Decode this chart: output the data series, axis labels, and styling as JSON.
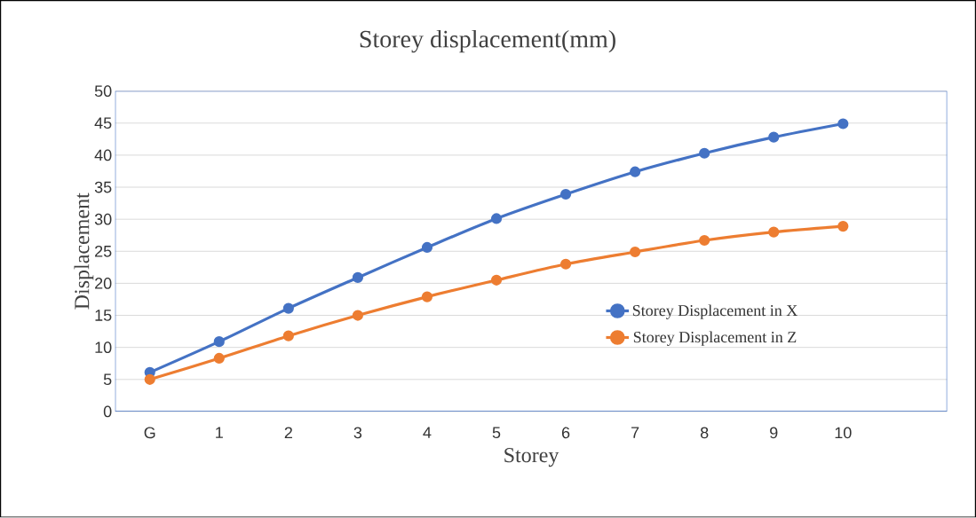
{
  "chart_data": {
    "type": "line",
    "title": "Storey displacement(mm)",
    "xlabel": "Storey",
    "ylabel": "Displacement",
    "categories": [
      "G",
      "1",
      "2",
      "3",
      "4",
      "5",
      "6",
      "7",
      "8",
      "9",
      "10"
    ],
    "series": [
      {
        "name": "Storey Displacement in X",
        "color": "#4472c4",
        "values": [
          6.1,
          10.9,
          16.1,
          20.9,
          25.6,
          30.1,
          33.9,
          37.4,
          40.3,
          42.8,
          44.9
        ]
      },
      {
        "name": "Storey Displacement in Z",
        "color": "#ed7d31",
        "values": [
          5.0,
          8.3,
          11.8,
          15.0,
          17.9,
          20.5,
          23.0,
          24.9,
          26.7,
          28.0,
          28.9
        ]
      }
    ],
    "ylim": [
      0,
      50
    ],
    "yticks": [
      0,
      5,
      10,
      15,
      20,
      25,
      30,
      35,
      40,
      45,
      50
    ],
    "grid": "y",
    "legend": "right",
    "marker": "circle",
    "line_style": "solid"
  }
}
